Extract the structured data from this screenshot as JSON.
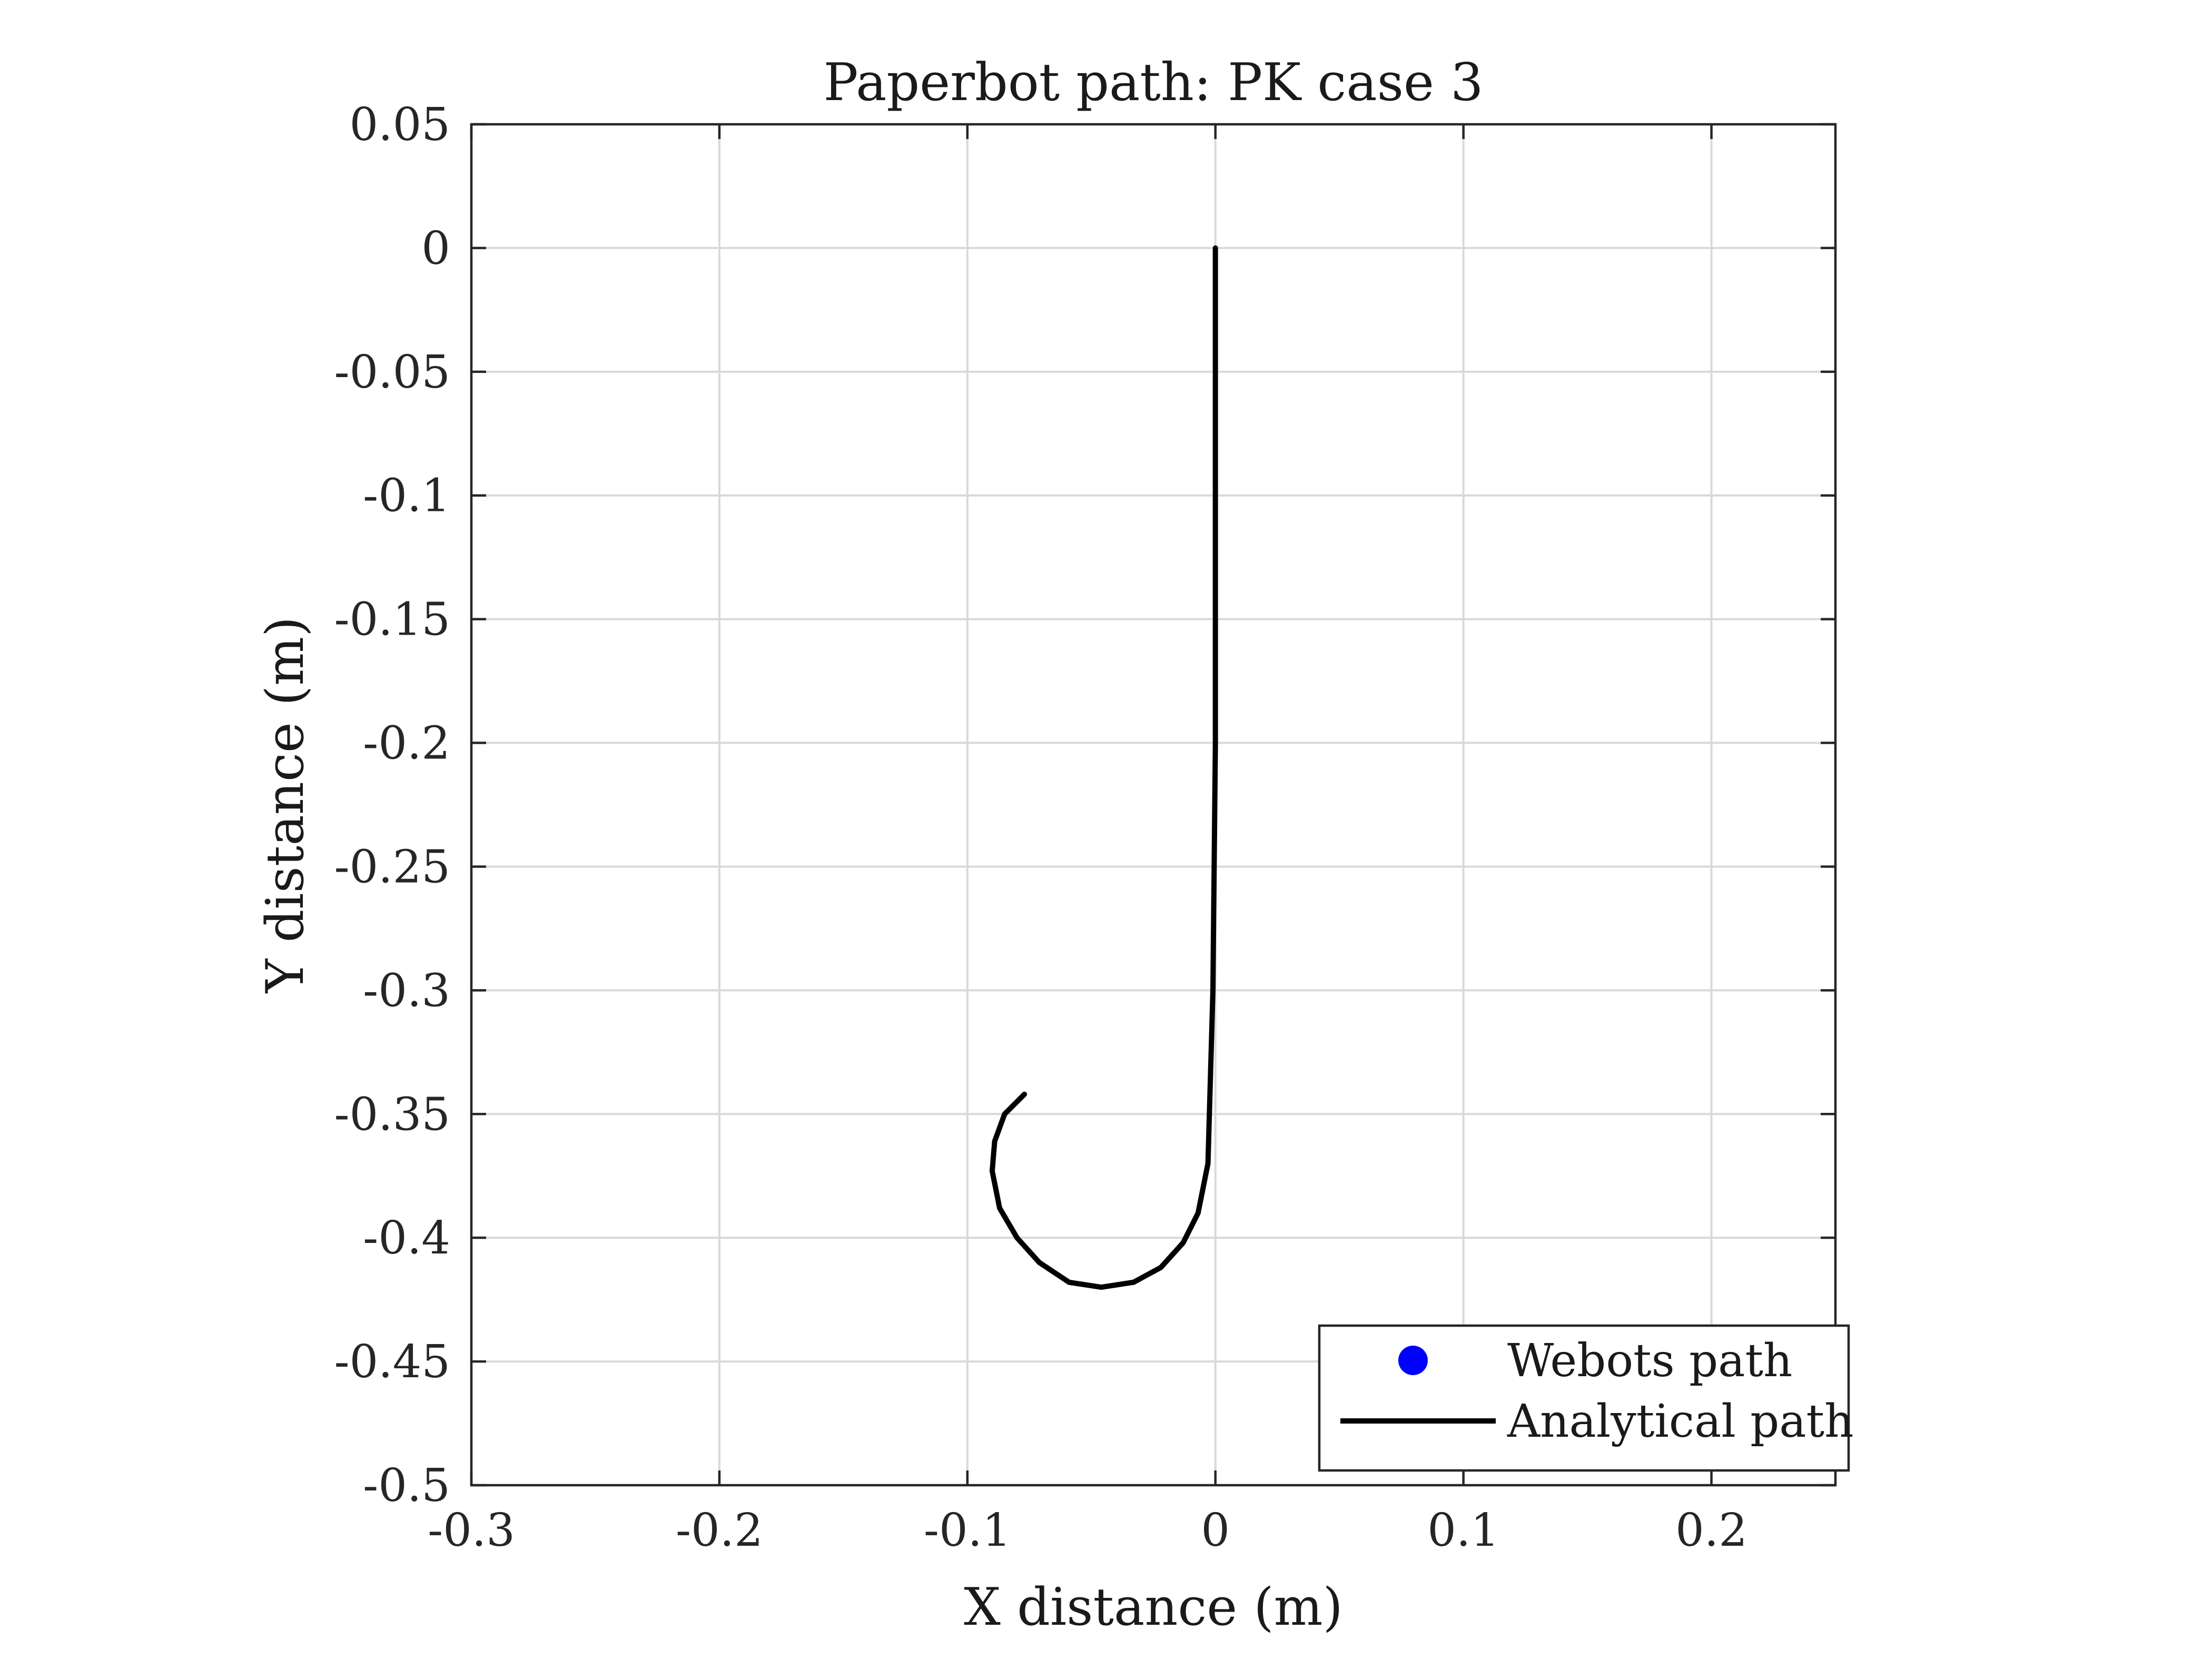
{
  "chart_data": {
    "type": "line",
    "title": "Paperbot path: PK case 3",
    "xlabel": "X distance (m)",
    "ylabel": "Y distance (m)",
    "xlim": [
      -0.3,
      0.25
    ],
    "ylim": [
      -0.5,
      0.05
    ],
    "xticks": [
      -0.3,
      -0.2,
      -0.1,
      0,
      0.1,
      0.2
    ],
    "xtick_labels": [
      "-0.3",
      "-0.2",
      "-0.1",
      "0",
      "0.1",
      "0.2"
    ],
    "yticks": [
      0.05,
      0,
      -0.05,
      -0.1,
      -0.15,
      -0.2,
      -0.25,
      -0.3,
      -0.35,
      -0.4,
      -0.45,
      -0.5
    ],
    "ytick_labels": [
      "0.05",
      "0",
      "-0.05",
      "-0.1",
      "-0.15",
      "-0.2",
      "-0.25",
      "-0.3",
      "-0.35",
      "-0.4",
      "-0.45",
      "-0.5"
    ],
    "grid": true,
    "legend_position": "bottom-right",
    "series": [
      {
        "name": "Webots path",
        "marker": "circle",
        "color": "#0000ff",
        "x": [],
        "y": []
      },
      {
        "name": "Analytical path",
        "line": "solid",
        "color": "#000000",
        "x": [
          0,
          0,
          0,
          -0.001,
          -0.003,
          -0.007,
          -0.013,
          -0.022,
          -0.033,
          -0.046,
          -0.059,
          -0.071,
          -0.08,
          -0.087,
          -0.09,
          -0.089,
          -0.085,
          -0.077
        ],
        "y": [
          0,
          -0.1,
          -0.2,
          -0.3,
          -0.37,
          -0.39,
          -0.402,
          -0.412,
          -0.418,
          -0.42,
          -0.418,
          -0.41,
          -0.4,
          -0.388,
          -0.373,
          -0.361,
          -0.35,
          -0.342
        ]
      }
    ]
  }
}
